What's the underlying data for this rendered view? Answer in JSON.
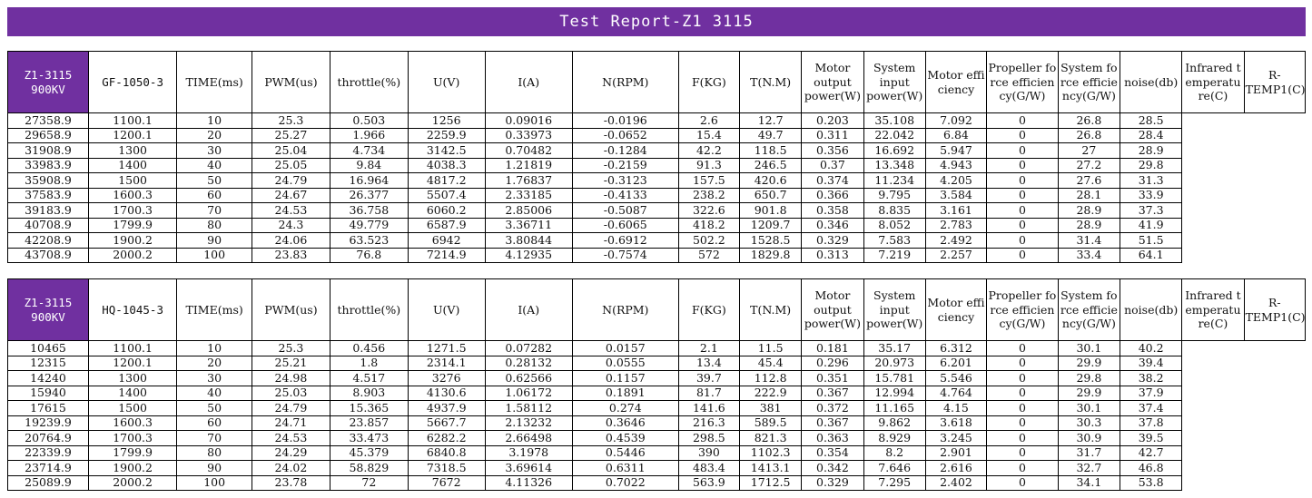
{
  "title": "Test Report-Z1 3115",
  "headers": [
    "TIME(ms)",
    "PWM(us)",
    "throttle(%)",
    "U(V)",
    "I(A)",
    "N(RPM)",
    "F(KG)",
    "T(N.M)",
    "Motor output power(W)",
    "System input power(W)",
    "Motor efficiency",
    "Propeller force efficiency(G/W)",
    "System force efficiency(G/W)",
    "noise(db)",
    "Infrared temperature(C)",
    "R-TEMP1(C)"
  ],
  "tables": [
    {
      "motor": "Z1-3115 900KV",
      "propeller": "GF-1050-3",
      "rows": [
        [
          "27358.9",
          "1100.1",
          "10",
          "25.3",
          "0.503",
          "1256",
          "0.09016",
          "-0.0196",
          "2.6",
          "12.7",
          "0.203",
          "35.108",
          "7.092",
          "0",
          "26.8",
          "28.5"
        ],
        [
          "29658.9",
          "1200.1",
          "20",
          "25.27",
          "1.966",
          "2259.9",
          "0.33973",
          "-0.0652",
          "15.4",
          "49.7",
          "0.311",
          "22.042",
          "6.84",
          "0",
          "26.8",
          "28.4"
        ],
        [
          "31908.9",
          "1300",
          "30",
          "25.04",
          "4.734",
          "3142.5",
          "0.70482",
          "-0.1284",
          "42.2",
          "118.5",
          "0.356",
          "16.692",
          "5.947",
          "0",
          "27",
          "28.9"
        ],
        [
          "33983.9",
          "1400",
          "40",
          "25.05",
          "9.84",
          "4038.3",
          "1.21819",
          "-0.2159",
          "91.3",
          "246.5",
          "0.37",
          "13.348",
          "4.943",
          "0",
          "27.2",
          "29.8"
        ],
        [
          "35908.9",
          "1500",
          "50",
          "24.79",
          "16.964",
          "4817.2",
          "1.76837",
          "-0.3123",
          "157.5",
          "420.6",
          "0.374",
          "11.234",
          "4.205",
          "0",
          "27.6",
          "31.3"
        ],
        [
          "37583.9",
          "1600.3",
          "60",
          "24.67",
          "26.377",
          "5507.4",
          "2.33185",
          "-0.4133",
          "238.2",
          "650.7",
          "0.366",
          "9.795",
          "3.584",
          "0",
          "28.1",
          "33.9"
        ],
        [
          "39183.9",
          "1700.3",
          "70",
          "24.53",
          "36.758",
          "6060.2",
          "2.85006",
          "-0.5087",
          "322.6",
          "901.8",
          "0.358",
          "8.835",
          "3.161",
          "0",
          "28.9",
          "37.3"
        ],
        [
          "40708.9",
          "1799.9",
          "80",
          "24.3",
          "49.779",
          "6587.9",
          "3.36711",
          "-0.6065",
          "418.2",
          "1209.7",
          "0.346",
          "8.052",
          "2.783",
          "0",
          "28.9",
          "41.9"
        ],
        [
          "42208.9",
          "1900.2",
          "90",
          "24.06",
          "63.523",
          "6942",
          "3.80844",
          "-0.6912",
          "502.2",
          "1528.5",
          "0.329",
          "7.583",
          "2.492",
          "0",
          "31.4",
          "51.5"
        ],
        [
          "43708.9",
          "2000.2",
          "100",
          "23.83",
          "76.8",
          "7214.9",
          "4.12935",
          "-0.7574",
          "572",
          "1829.8",
          "0.313",
          "7.219",
          "2.257",
          "0",
          "33.4",
          "64.1"
        ]
      ]
    },
    {
      "motor": "Z1-3115 900KV",
      "propeller": "HQ-1045-3",
      "rows": [
        [
          "10465",
          "1100.1",
          "10",
          "25.3",
          "0.456",
          "1271.5",
          "0.07282",
          "0.0157",
          "2.1",
          "11.5",
          "0.181",
          "35.17",
          "6.312",
          "0",
          "30.1",
          "40.2"
        ],
        [
          "12315",
          "1200.1",
          "20",
          "25.21",
          "1.8",
          "2314.1",
          "0.28132",
          "0.0555",
          "13.4",
          "45.4",
          "0.296",
          "20.973",
          "6.201",
          "0",
          "29.9",
          "39.4"
        ],
        [
          "14240",
          "1300",
          "30",
          "24.98",
          "4.517",
          "3276",
          "0.62566",
          "0.1157",
          "39.7",
          "112.8",
          "0.351",
          "15.781",
          "5.546",
          "0",
          "29.8",
          "38.2"
        ],
        [
          "15940",
          "1400",
          "40",
          "25.03",
          "8.903",
          "4130.6",
          "1.06172",
          "0.1891",
          "81.7",
          "222.9",
          "0.367",
          "12.994",
          "4.764",
          "0",
          "29.9",
          "37.9"
        ],
        [
          "17615",
          "1500",
          "50",
          "24.79",
          "15.365",
          "4937.9",
          "1.58112",
          "0.274",
          "141.6",
          "381",
          "0.372",
          "11.165",
          "4.15",
          "0",
          "30.1",
          "37.4"
        ],
        [
          "19239.9",
          "1600.3",
          "60",
          "24.71",
          "23.857",
          "5667.7",
          "2.13232",
          "0.3646",
          "216.3",
          "589.5",
          "0.367",
          "9.862",
          "3.618",
          "0",
          "30.3",
          "37.8"
        ],
        [
          "20764.9",
          "1700.3",
          "70",
          "24.53",
          "33.473",
          "6282.2",
          "2.66498",
          "0.4539",
          "298.5",
          "821.3",
          "0.363",
          "8.929",
          "3.245",
          "0",
          "30.9",
          "39.5"
        ],
        [
          "22339.9",
          "1799.9",
          "80",
          "24.29",
          "45.379",
          "6840.8",
          "3.1978",
          "0.5446",
          "390",
          "1102.3",
          "0.354",
          "8.2",
          "2.901",
          "0",
          "31.7",
          "42.7"
        ],
        [
          "23714.9",
          "1900.2",
          "90",
          "24.02",
          "58.829",
          "7318.5",
          "3.69614",
          "0.6311",
          "483.4",
          "1413.1",
          "0.342",
          "7.646",
          "2.616",
          "0",
          "32.7",
          "46.8"
        ],
        [
          "25089.9",
          "2000.2",
          "100",
          "23.78",
          "72",
          "7672",
          "4.11326",
          "0.7022",
          "563.9",
          "1712.5",
          "0.329",
          "7.295",
          "2.402",
          "0",
          "34.1",
          "53.8"
        ]
      ]
    }
  ]
}
